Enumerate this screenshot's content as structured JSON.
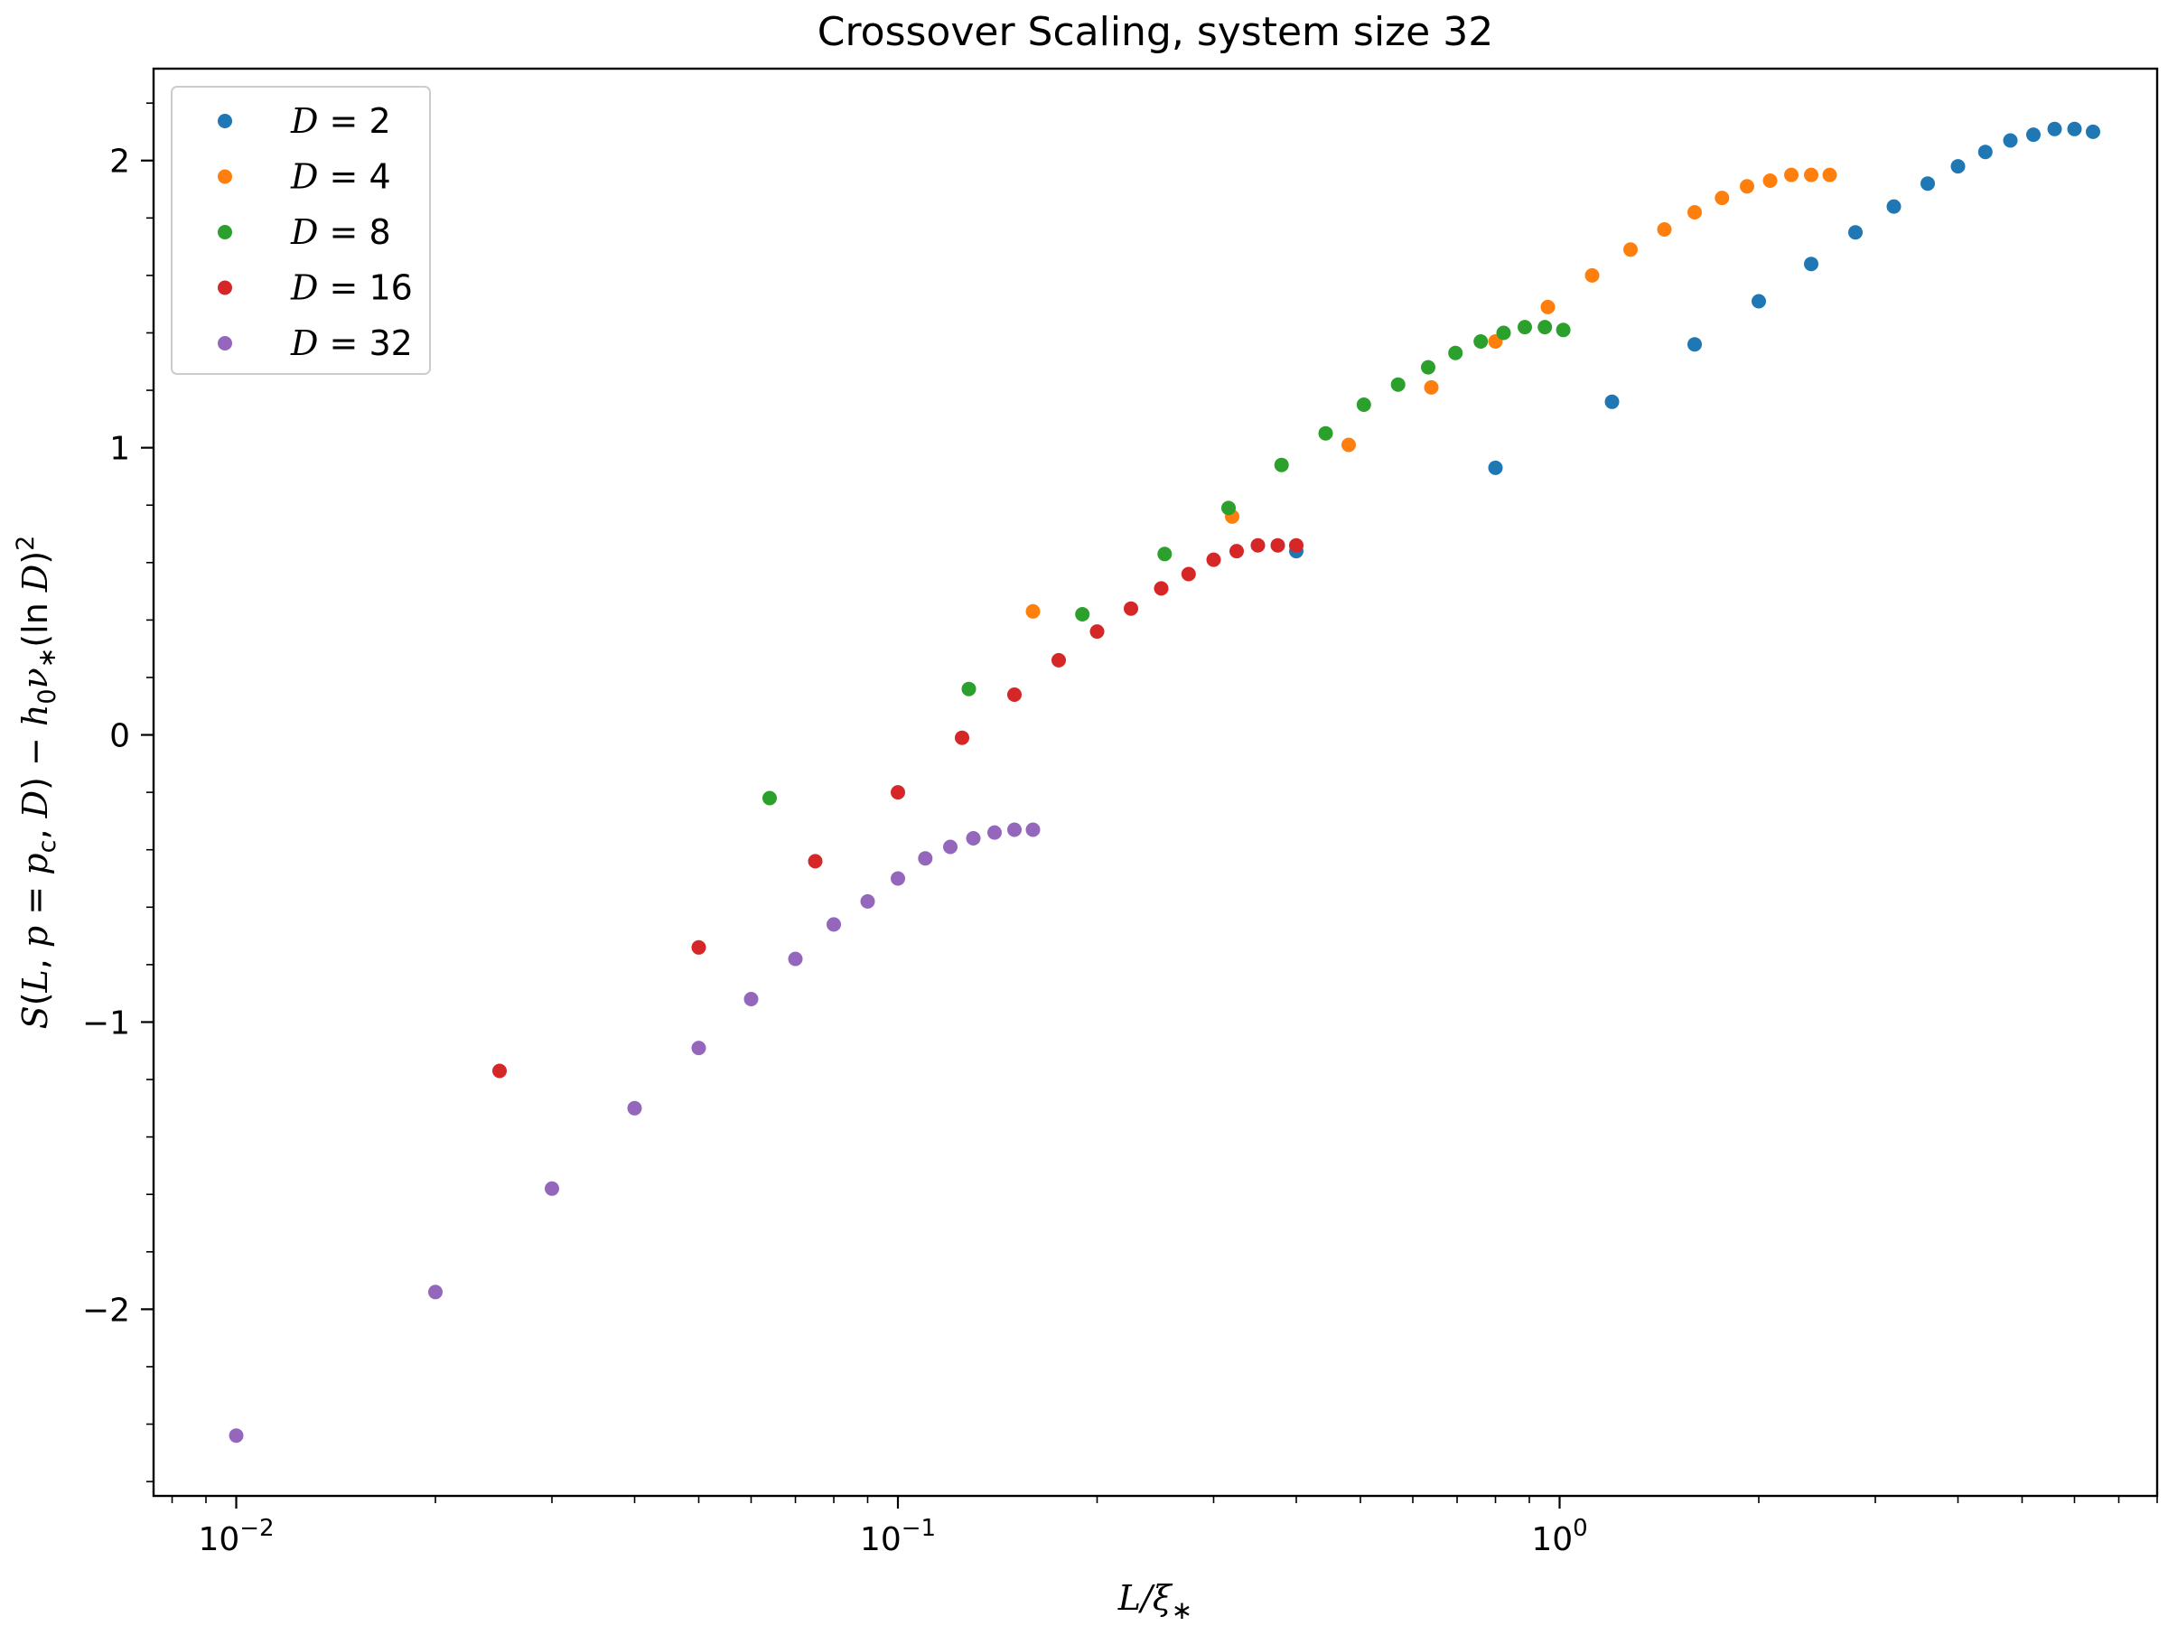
{
  "chart_data": {
    "type": "scatter",
    "title": "Crossover Scaling, system size 32",
    "xlabel": "L/ξ∗",
    "ylabel": "S(L, p = p_c, D) − h₀ν∗(ln D)²",
    "xscale": "log",
    "xlim": [
      0.0075,
      8.0
    ],
    "ylim": [
      -2.65,
      2.32
    ],
    "xticks": [
      {
        "value": 0.01,
        "base": "10",
        "exp": "−2"
      },
      {
        "value": 0.1,
        "base": "10",
        "exp": "−1"
      },
      {
        "value": 1,
        "base": "10",
        "exp": "0"
      }
    ],
    "yticks": [
      {
        "value": -2,
        "label": "−2"
      },
      {
        "value": -1,
        "label": "−1"
      },
      {
        "value": 0,
        "label": "0"
      },
      {
        "value": 1,
        "label": "1"
      },
      {
        "value": 2,
        "label": "2"
      }
    ],
    "legend_position": "upper-left",
    "grid": false,
    "series": [
      {
        "name": "D = 2",
        "legend": {
          "var": "D",
          "eq": " = ",
          "num": "2"
        },
        "color": "#1f77b4",
        "x": [
          0.4,
          0.8,
          1.2,
          1.6,
          2.0,
          2.4,
          2.8,
          3.2,
          3.6,
          4.0,
          4.4,
          4.8,
          5.2,
          5.6,
          6.0,
          6.4
        ],
        "y": [
          0.64,
          0.93,
          1.16,
          1.36,
          1.51,
          1.64,
          1.75,
          1.84,
          1.92,
          1.98,
          2.03,
          2.07,
          2.09,
          2.11,
          2.11,
          2.1
        ]
      },
      {
        "name": "D = 4",
        "legend": {
          "var": "D",
          "eq": " = ",
          "num": "4"
        },
        "color": "#ff7f0e",
        "x": [
          0.16,
          0.32,
          0.48,
          0.64,
          0.8,
          0.96,
          1.12,
          1.28,
          1.44,
          1.6,
          1.76,
          1.92,
          2.08,
          2.24,
          2.4,
          2.56
        ],
        "y": [
          0.43,
          0.76,
          1.01,
          1.21,
          1.37,
          1.49,
          1.6,
          1.69,
          1.76,
          1.82,
          1.87,
          1.91,
          1.93,
          1.95,
          1.95,
          1.95
        ]
      },
      {
        "name": "D = 8",
        "legend": {
          "var": "D",
          "eq": " = ",
          "num": "8"
        },
        "color": "#2ca02c",
        "x": [
          0.064,
          0.128,
          0.19,
          0.253,
          0.316,
          0.38,
          0.443,
          0.506,
          0.57,
          0.633,
          0.696,
          0.76,
          0.823,
          0.886,
          0.95,
          1.013
        ],
        "y": [
          -0.22,
          0.16,
          0.42,
          0.63,
          0.79,
          0.94,
          1.05,
          1.15,
          1.22,
          1.28,
          1.33,
          1.37,
          1.4,
          1.42,
          1.42,
          1.41
        ]
      },
      {
        "name": "D = 16",
        "legend": {
          "var": "D",
          "eq": " = ",
          "num": "16"
        },
        "color": "#d62728",
        "x": [
          0.025,
          0.05,
          0.075,
          0.1,
          0.125,
          0.15,
          0.175,
          0.2,
          0.225,
          0.25,
          0.275,
          0.3,
          0.325,
          0.35,
          0.375,
          0.4
        ],
        "y": [
          -1.17,
          -0.74,
          -0.44,
          -0.2,
          -0.01,
          0.14,
          0.26,
          0.36,
          0.44,
          0.51,
          0.56,
          0.61,
          0.64,
          0.66,
          0.66,
          0.66
        ]
      },
      {
        "name": "D = 32",
        "legend": {
          "var": "D",
          "eq": " = ",
          "num": "32"
        },
        "color": "#9467bd",
        "x": [
          0.01,
          0.02,
          0.03,
          0.04,
          0.05,
          0.06,
          0.07,
          0.08,
          0.09,
          0.1,
          0.11,
          0.12,
          0.13,
          0.14,
          0.15,
          0.16
        ],
        "y": [
          -2.44,
          -1.94,
          -1.58,
          -1.3,
          -1.09,
          -0.92,
          -0.78,
          -0.66,
          -0.58,
          -0.5,
          -0.43,
          -0.39,
          -0.36,
          -0.34,
          -0.33,
          -0.33
        ]
      }
    ]
  }
}
